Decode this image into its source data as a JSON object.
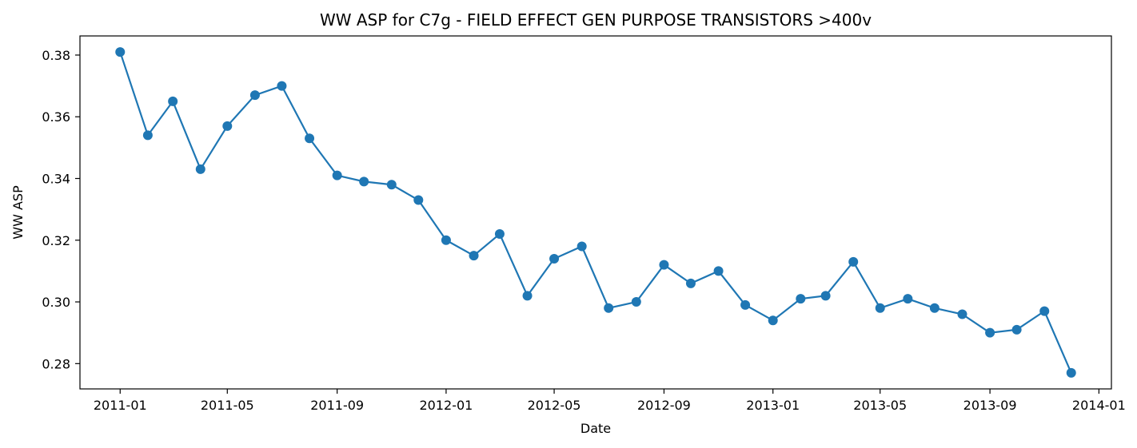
{
  "chart_data": {
    "type": "line",
    "title": "WW ASP for C7g - FIELD EFFECT GEN PURPOSE TRANSISTORS >400v",
    "xlabel": "Date",
    "ylabel": "WW ASP",
    "series": [
      {
        "color": "#1f77b4",
        "x": [
          "2011-01",
          "2011-02",
          "2011-03",
          "2011-04",
          "2011-05",
          "2011-06",
          "2011-07",
          "2011-08",
          "2011-09",
          "2011-10",
          "2011-11",
          "2011-12",
          "2012-01",
          "2012-02",
          "2012-03",
          "2012-04",
          "2012-05",
          "2012-06",
          "2012-07",
          "2012-08",
          "2012-09",
          "2012-10",
          "2012-11",
          "2012-12",
          "2013-01",
          "2013-02",
          "2013-03",
          "2013-04",
          "2013-05",
          "2013-06",
          "2013-07",
          "2013-08",
          "2013-09",
          "2013-10",
          "2013-11",
          "2013-12"
        ],
        "values": [
          0.381,
          0.354,
          0.365,
          0.343,
          0.357,
          0.367,
          0.37,
          0.353,
          0.341,
          0.339,
          0.338,
          0.333,
          0.32,
          0.315,
          0.322,
          0.302,
          0.314,
          0.318,
          0.298,
          0.3,
          0.312,
          0.306,
          0.31,
          0.299,
          0.294,
          0.301,
          0.302,
          0.313,
          0.298,
          0.301,
          0.298,
          0.296,
          0.29,
          0.291,
          0.297,
          0.277
        ]
      }
    ],
    "x_ticks": [
      "2011-01",
      "2011-05",
      "2011-09",
      "2012-01",
      "2012-05",
      "2012-09",
      "2013-01",
      "2013-05",
      "2013-09",
      "2014-01"
    ],
    "y_ticks": [
      "0.28",
      "0.30",
      "0.32",
      "0.34",
      "0.36",
      "0.38"
    ],
    "xlim": [
      "2010-11-17",
      "2014-01-15"
    ],
    "ylim": [
      0.2718,
      0.3862
    ],
    "grid": false,
    "legend": "none"
  }
}
